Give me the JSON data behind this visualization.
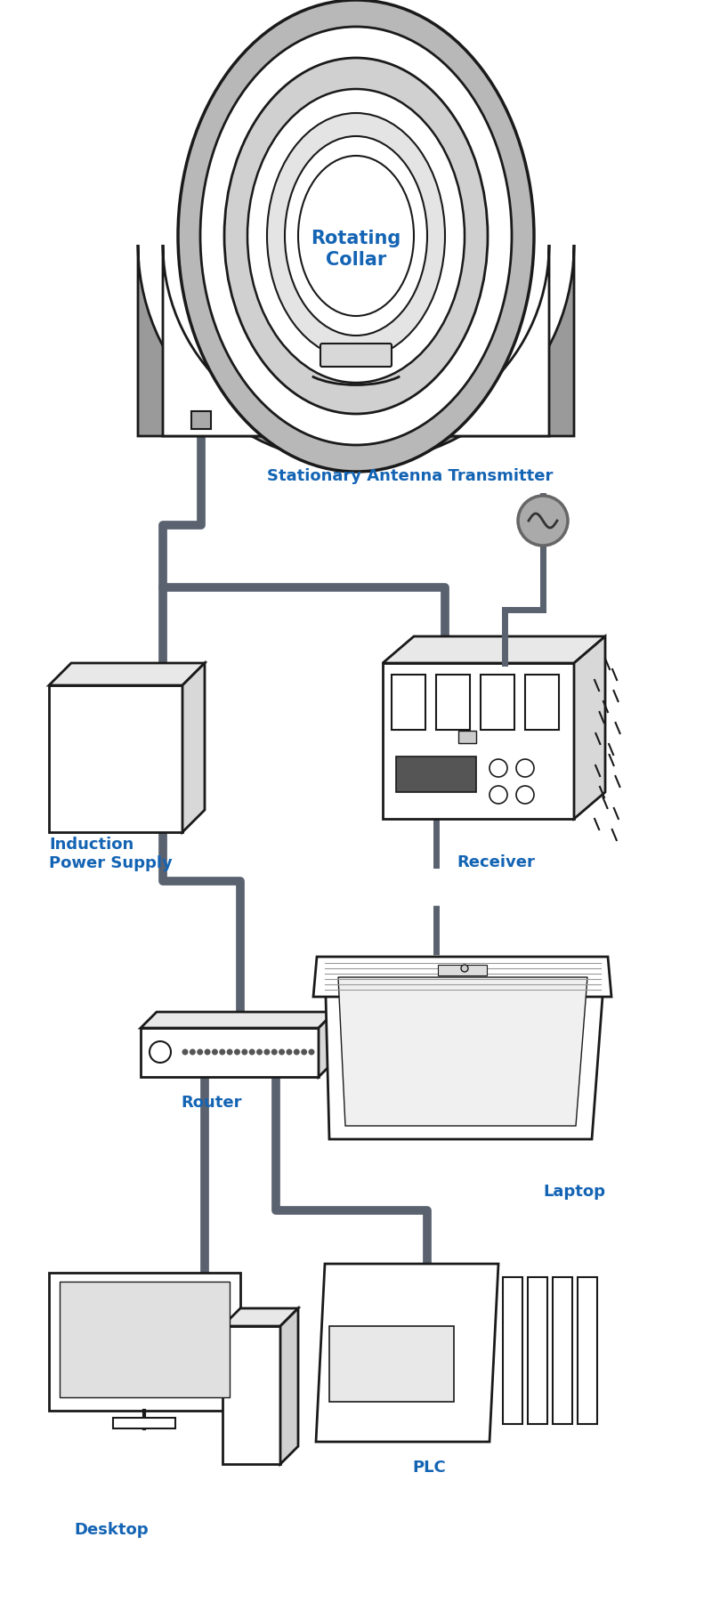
{
  "bg_color": "#ffffff",
  "label_color": "#1464b4",
  "wire_color": "#5a6270",
  "outline_color": "#1a1a1a",
  "gray_fill": "#9a9a9a",
  "gray_mid": "#b0b0b0",
  "gray_light": "#d8d8d8",
  "gray_lighter": "#e8e8e8",
  "labels": {
    "rotating_collar": "Rotating\nCollar",
    "stationary_antenna": "Stationary Antenna Transmitter",
    "induction_power": "Induction\nPower Supply",
    "receiver": "Receiver",
    "router": "Router",
    "laptop": "Laptop",
    "desktop": "Desktop",
    "plc": "PLC"
  }
}
